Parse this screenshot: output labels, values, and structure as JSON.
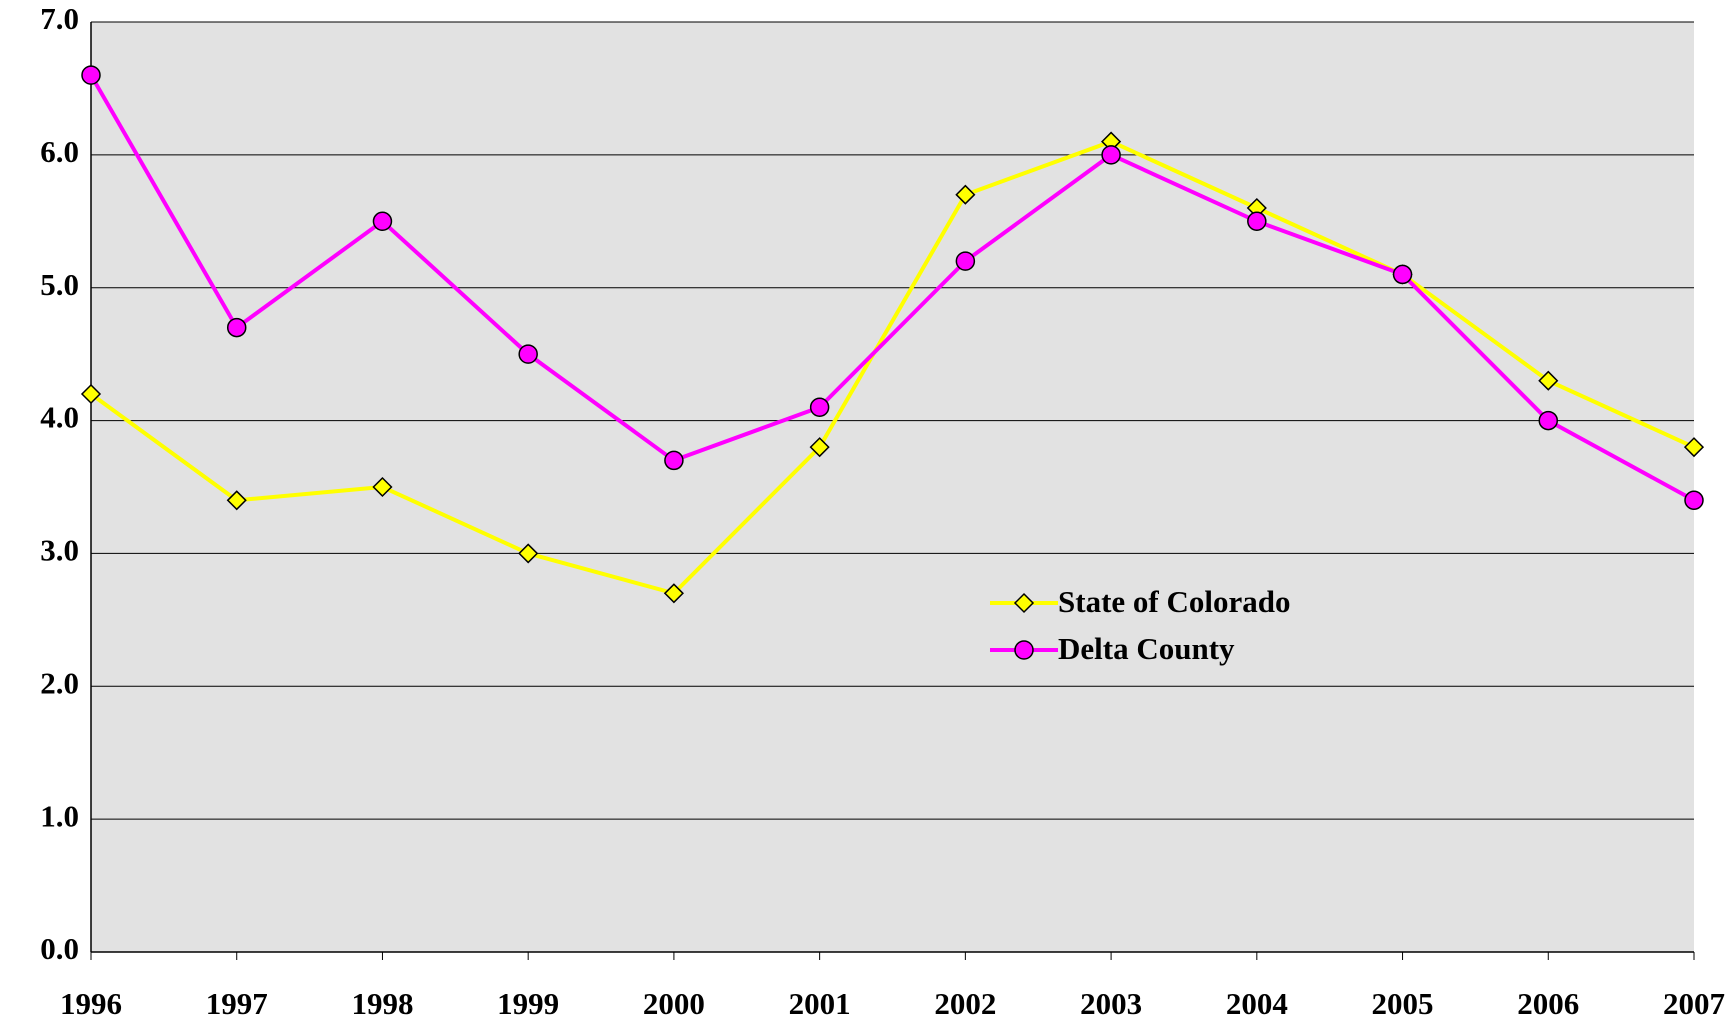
{
  "chart_data": {
    "type": "line",
    "categories": [
      "1996",
      "1997",
      "1998",
      "1999",
      "2000",
      "2001",
      "2002",
      "2003",
      "2004",
      "2005",
      "2006",
      "2007"
    ],
    "series": [
      {
        "name": "State of Colorado",
        "color": "#ffff00",
        "marker": "diamond",
        "values": [
          4.2,
          3.4,
          3.5,
          3.0,
          2.7,
          3.8,
          5.7,
          6.1,
          5.6,
          5.1,
          4.3,
          3.8
        ]
      },
      {
        "name": "Delta County",
        "color": "#ff00ff",
        "marker": "circle",
        "values": [
          6.6,
          4.7,
          5.5,
          4.5,
          3.7,
          4.1,
          5.2,
          6.0,
          5.5,
          5.1,
          4.0,
          3.4
        ]
      }
    ],
    "ylim": [
      0,
      7
    ],
    "yticks": [
      {
        "value": 0,
        "label": "0.0"
      },
      {
        "value": 1,
        "label": "1.0"
      },
      {
        "value": 2,
        "label": "2.0"
      },
      {
        "value": 3,
        "label": "3.0"
      },
      {
        "value": 4,
        "label": "4.0"
      },
      {
        "value": 5,
        "label": "5.0"
      },
      {
        "value": 6,
        "label": "6.0"
      },
      {
        "value": 7,
        "label": "7.0"
      }
    ],
    "grid": true
  }
}
